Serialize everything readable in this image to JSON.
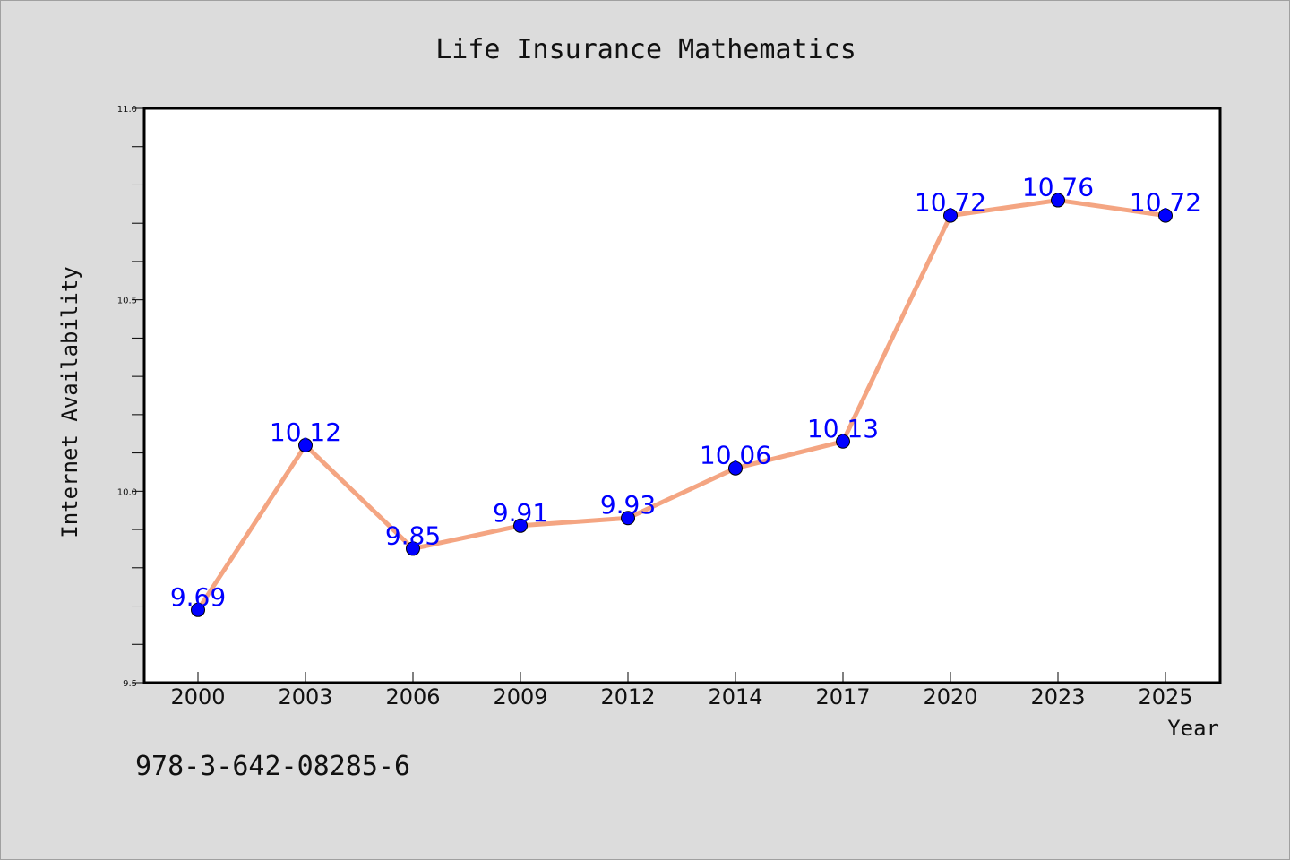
{
  "chart_data": {
    "type": "line",
    "title": "Life Insurance Mathematics",
    "xlabel": "Year",
    "ylabel": "Internet Availability",
    "categories": [
      "2000",
      "2003",
      "2006",
      "2009",
      "2012",
      "2014",
      "2017",
      "2020",
      "2023",
      "2025"
    ],
    "series": [
      {
        "values": [
          9.69,
          10.12,
          9.85,
          9.91,
          9.93,
          10.06,
          10.13,
          10.72,
          10.76,
          10.72
        ],
        "data_labels": [
          "9.69",
          "10.12",
          "9.85",
          "9.91",
          "9.93",
          "10.06",
          "10.13",
          "10.72",
          "10.76",
          "10.72"
        ]
      }
    ],
    "ylim": [
      9.5,
      11.0
    ],
    "y_major_ticks": [
      "9.5",
      "10.0",
      "10.5",
      "11.0"
    ],
    "grid": false,
    "colors": {
      "line": "#f4a582",
      "marker": "#0000ff",
      "label": "#0000ff",
      "background": "#dcdcdc",
      "plot_area": "#ffffff"
    }
  },
  "footnote": "978-3-642-08285-6"
}
